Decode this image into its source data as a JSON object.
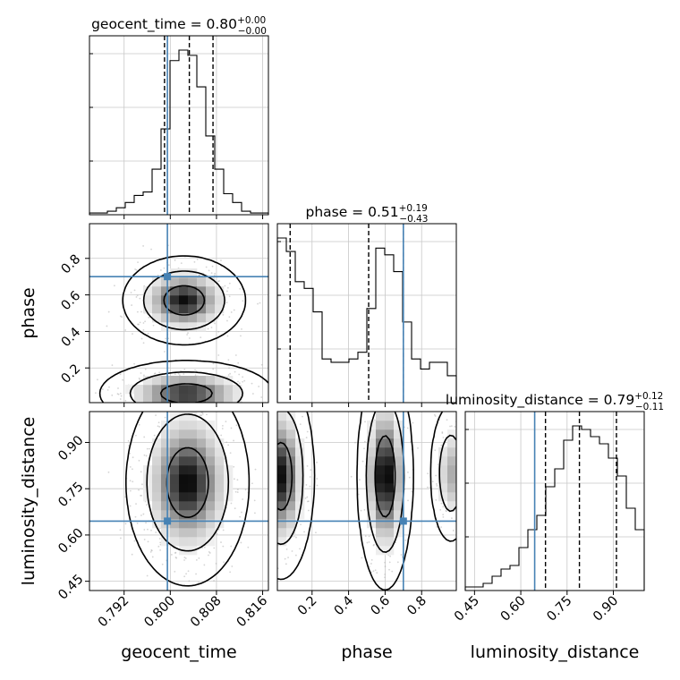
{
  "chart_data": {
    "type": "corner",
    "parameters": [
      "geocent_time",
      "phase",
      "luminosity_distance"
    ],
    "truths": {
      "geocent_time": 0.7995,
      "phase": 0.7,
      "luminosity_distance": 0.645
    },
    "titles": [
      {
        "param": "geocent_time",
        "text": "geocent_time = 0.80",
        "sup": "+0.00",
        "sub": "−0.00"
      },
      {
        "param": "phase",
        "text": "phase = 0.51",
        "sup": "+0.19",
        "sub": "−0.43"
      },
      {
        "param": "luminosity_distance",
        "text": "luminosity_distance = 0.79",
        "sup": "+0.12",
        "sub": "−0.11"
      }
    ],
    "axes": {
      "geocent_time": {
        "range": [
          0.786,
          0.817
        ],
        "ticks": [
          0.792,
          0.8,
          0.808,
          0.816
        ],
        "tick_labels": [
          "0.792",
          "0.800",
          "0.808",
          "0.816"
        ]
      },
      "phase": {
        "range": [
          0.01,
          0.99
        ],
        "ticks": [
          0.2,
          0.4,
          0.6,
          0.8
        ],
        "tick_labels": [
          "0.2",
          "0.4",
          "0.6",
          "0.8"
        ]
      },
      "luminosity_distance": {
        "range": [
          0.42,
          1.0
        ],
        "ticks": [
          0.45,
          0.6,
          0.75,
          0.9
        ],
        "tick_labels": [
          "0.45",
          "0.60",
          "0.75",
          "0.90"
        ]
      }
    },
    "quantiles": {
      "geocent_time": [
        0.799,
        0.8033,
        0.8074
      ],
      "phase": [
        0.08,
        0.51,
        0.7
      ],
      "luminosity_distance": [
        0.68,
        0.79,
        0.91
      ]
    },
    "histograms": {
      "geocent_time": {
        "counts": [
          1,
          1,
          2,
          4,
          7,
          11,
          13,
          26,
          49,
          88,
          94,
          91,
          73,
          45,
          26,
          12,
          7,
          2,
          1,
          1
        ]
      },
      "phase": {
        "counts": [
          49,
          45,
          36,
          34,
          27,
          13,
          12,
          12,
          13,
          15,
          28,
          46,
          44,
          39,
          24,
          13,
          10,
          12,
          12,
          8
        ]
      },
      "luminosity_distance": {
        "counts": [
          1,
          1,
          2,
          4,
          6,
          7,
          12,
          17,
          21,
          29,
          34,
          42,
          46,
          45,
          43,
          41,
          37,
          32,
          23,
          17
        ]
      }
    },
    "levels": [
      0.39,
      0.86,
      0.99
    ],
    "modes": {
      "geocent_time|phase": [
        {
          "mx": 0.8024,
          "my": 0.57,
          "sx": 0.0035,
          "sy": 0.08,
          "w": 1.0
        },
        {
          "mx": 0.8028,
          "my": 0.06,
          "sx": 0.005,
          "sy": 0.06,
          "w": 0.9
        }
      ],
      "geocent_time|luminosity_distance": [
        {
          "mx": 0.803,
          "my": 0.77,
          "sx": 0.0035,
          "sy": 0.11,
          "w": 1.0
        }
      ],
      "phase|luminosity_distance": [
        {
          "mx": 0.03,
          "my": 0.79,
          "sx": 0.06,
          "sy": 0.11,
          "w": 0.9
        },
        {
          "mx": 0.6,
          "my": 0.79,
          "sx": 0.05,
          "sy": 0.12,
          "w": 1.0
        },
        {
          "mx": 0.96,
          "my": 0.8,
          "sx": 0.04,
          "sy": 0.08,
          "w": 0.4
        }
      ]
    },
    "truth_color": "#4682b4",
    "grid": true
  }
}
